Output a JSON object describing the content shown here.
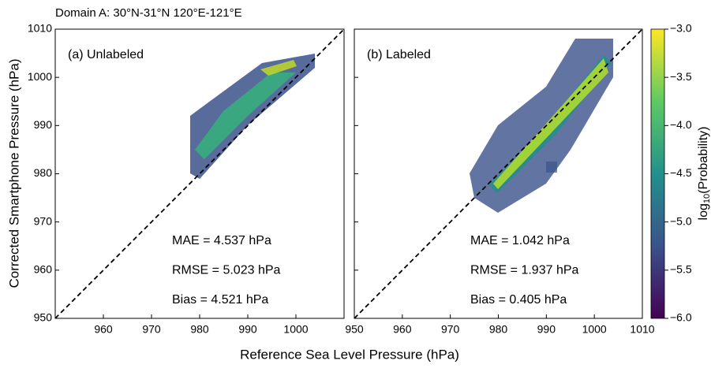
{
  "title": "Domain A: 30°N-31°N 120°E-121°E",
  "x_label": "Reference Sea Level Pressure (hPa)",
  "y_label": "Corrected Smartphone Pressure (hPa)",
  "chart_data": [
    {
      "type": "heatmap",
      "panel_label": "(a) Unlabeled",
      "xlim": [
        950,
        1010
      ],
      "ylim": [
        950,
        1010
      ],
      "xticks": [
        960,
        970,
        980,
        990,
        1000
      ],
      "yticks": [
        950,
        960,
        970,
        980,
        990,
        1000,
        1010
      ],
      "annotations": [
        "MAE = 4.537 hPa",
        "RMSE = 5.023 hPa",
        "Bias = 4.521 hPa"
      ]
    },
    {
      "type": "heatmap",
      "panel_label": "(b) Labeled",
      "xlim": [
        950,
        1010
      ],
      "ylim": [
        950,
        1010
      ],
      "xticks": [
        950,
        960,
        970,
        980,
        990,
        1000,
        1010
      ],
      "yticks": [
        950,
        960,
        970,
        980,
        990,
        1000,
        1010
      ],
      "annotations": [
        "MAE = 1.042 hPa",
        "RMSE = 1.937 hPa",
        "Bias = 0.405 hPa"
      ]
    }
  ],
  "colorbar": {
    "label_parts": [
      "log",
      "10",
      "(Probability)"
    ],
    "lim": [
      -6,
      -3
    ],
    "ticks": [
      {
        "value": -6,
        "label": "−6.0"
      },
      {
        "value": -5.5,
        "label": "−5.5"
      },
      {
        "value": -5,
        "label": "−5.0"
      },
      {
        "value": -4.5,
        "label": "−4.5"
      },
      {
        "value": -4,
        "label": "−4.0"
      },
      {
        "value": -3.5,
        "label": "−3.5"
      },
      {
        "value": -3,
        "label": "−3.0"
      }
    ]
  }
}
